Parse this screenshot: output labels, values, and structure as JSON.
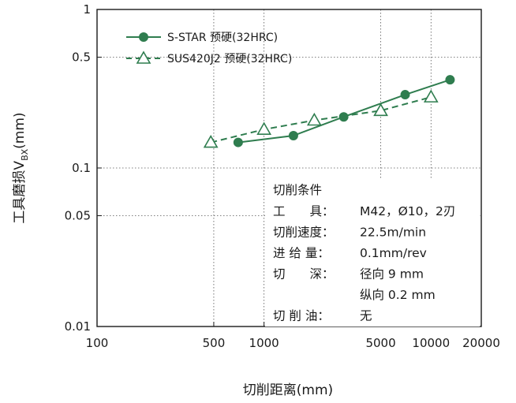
{
  "chart_data": {
    "type": "line",
    "x_scale": "log",
    "y_scale": "log",
    "xlim": [
      100,
      20000
    ],
    "ylim": [
      0.01,
      1
    ],
    "x_ticks": [
      {
        "value": 100,
        "label": "100"
      },
      {
        "value": 500,
        "label": "500"
      },
      {
        "value": 1000,
        "label": "1000"
      },
      {
        "value": 5000,
        "label": "5000"
      },
      {
        "value": 10000,
        "label": "10000"
      },
      {
        "value": 20000,
        "label": "20000"
      }
    ],
    "y_ticks": [
      {
        "value": 1,
        "label": "1"
      },
      {
        "value": 0.5,
        "label": "0.5"
      },
      {
        "value": 0.1,
        "label": "0.1"
      },
      {
        "value": 0.05,
        "label": "0.05"
      },
      {
        "value": 0.01,
        "label": "0.01"
      }
    ],
    "xlabel": "切削距离(mm)",
    "ylabel_main": "工具磨损V",
    "ylabel_sub": "BX",
    "ylabel_unit": "(mm)",
    "grid": "dotted",
    "legend_position": "top-left",
    "series": [
      {
        "name": "S-STAR 预硬(32HRC)",
        "marker": "filled-circle",
        "line_style": "solid",
        "color": "#2f7d4f",
        "x": [
          700,
          1500,
          3000,
          7000,
          13000
        ],
        "y": [
          0.145,
          0.16,
          0.21,
          0.29,
          0.36
        ]
      },
      {
        "name": "SUS420J2 预硬(32HRC)",
        "marker": "open-triangle",
        "line_style": "dashed",
        "color": "#2f7d4f",
        "x": [
          480,
          1000,
          2000,
          5000,
          10000
        ],
        "y": [
          0.145,
          0.175,
          0.2,
          0.23,
          0.28
        ]
      }
    ],
    "annotation": {
      "title": "切削条件",
      "rows": [
        {
          "label": "工　　具：",
          "value": "M42，Ø10，2刃"
        },
        {
          "label": "切削速度：",
          "value": "22.5m/min"
        },
        {
          "label": "进 给 量：",
          "value": "0.1mm/rev"
        },
        {
          "label": "切　　深：",
          "value": "径向 9 mm"
        },
        {
          "label": "",
          "value": "纵向 0.2 mm"
        },
        {
          "label": "切 削 油：",
          "value": "无"
        }
      ]
    }
  }
}
